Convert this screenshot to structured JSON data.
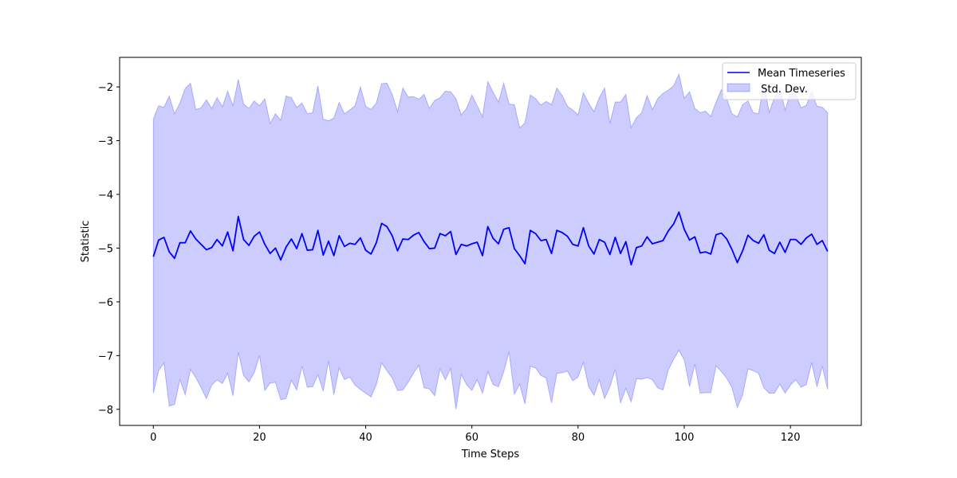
{
  "chart_data": {
    "type": "line",
    "title": "",
    "xlabel": "Time Steps",
    "ylabel": "Statistic",
    "xlim": [
      -6.35,
      133.35
    ],
    "ylim": [
      -8.3,
      -1.45
    ],
    "xticks": [
      0,
      20,
      40,
      60,
      80,
      100,
      120
    ],
    "yticks": [
      -8,
      -7,
      -6,
      -5,
      -4,
      -3,
      -2
    ],
    "grid": false,
    "legend_position": "top-right",
    "series": [
      {
        "name": "Mean Timeseries",
        "kind": "line",
        "color": "#0000ff",
        "x": [
          0,
          1,
          2,
          3,
          4,
          5,
          6,
          7,
          8,
          9,
          10,
          11,
          12,
          13,
          14,
          15,
          16,
          17,
          18,
          19,
          20,
          21,
          22,
          23,
          24,
          25,
          26,
          27,
          28,
          29,
          30,
          31,
          32,
          33,
          34,
          35,
          36,
          37,
          38,
          39,
          40,
          41,
          42,
          43,
          44,
          45,
          46,
          47,
          48,
          49,
          50,
          51,
          52,
          53,
          54,
          55,
          56,
          57,
          58,
          59,
          60,
          61,
          62,
          63,
          64,
          65,
          66,
          67,
          68,
          69,
          70,
          71,
          72,
          73,
          74,
          75,
          76,
          77,
          78,
          79,
          80,
          81,
          82,
          83,
          84,
          85,
          86,
          87,
          88,
          89,
          90,
          91,
          92,
          93,
          94,
          95,
          96,
          97,
          98,
          99,
          100,
          101,
          102,
          103,
          104,
          105,
          106,
          107,
          108,
          109,
          110,
          111,
          112,
          113,
          114,
          115,
          116,
          117,
          118,
          119,
          120,
          121,
          122,
          123,
          124,
          125,
          126,
          127
        ],
        "y": [
          -5.16,
          -4.85,
          -4.8,
          -5.07,
          -5.19,
          -4.9,
          -4.9,
          -4.68,
          -4.83,
          -4.93,
          -5.03,
          -4.99,
          -4.84,
          -4.96,
          -4.7,
          -5.05,
          -4.41,
          -4.84,
          -4.95,
          -4.78,
          -4.7,
          -4.93,
          -5.1,
          -5.0,
          -5.22,
          -4.98,
          -4.83,
          -5.01,
          -4.73,
          -5.04,
          -5.03,
          -4.67,
          -5.13,
          -4.87,
          -5.14,
          -4.77,
          -4.97,
          -4.91,
          -4.93,
          -4.81,
          -5.04,
          -5.11,
          -4.9,
          -4.54,
          -4.6,
          -4.77,
          -5.05,
          -4.83,
          -4.84,
          -4.76,
          -4.71,
          -4.88,
          -5.01,
          -5.0,
          -4.73,
          -4.77,
          -4.69,
          -5.12,
          -4.93,
          -4.96,
          -4.92,
          -4.89,
          -5.14,
          -4.6,
          -4.82,
          -4.92,
          -4.65,
          -4.62,
          -5.01,
          -5.14,
          -5.29,
          -4.67,
          -4.73,
          -4.86,
          -4.84,
          -5.1,
          -4.67,
          -4.71,
          -4.78,
          -4.93,
          -4.96,
          -4.62,
          -4.96,
          -5.11,
          -4.84,
          -4.89,
          -5.12,
          -4.8,
          -5.1,
          -4.88,
          -5.31,
          -4.99,
          -4.96,
          -4.79,
          -4.92,
          -4.89,
          -4.86,
          -4.68,
          -4.55,
          -4.33,
          -4.65,
          -4.85,
          -4.79,
          -5.09,
          -5.07,
          -5.11,
          -4.75,
          -4.72,
          -4.83,
          -5.03,
          -5.27,
          -5.05,
          -4.76,
          -4.86,
          -4.91,
          -4.75,
          -5.04,
          -5.1,
          -4.89,
          -5.08,
          -4.84,
          -4.84,
          -4.93,
          -4.81,
          -4.74,
          -4.93,
          -4.86,
          -5.06
        ]
      },
      {
        "name": " Std. Dev.",
        "kind": "band",
        "color": "#0000ff",
        "opacity": 0.2,
        "upper": [
          -2.6,
          -2.35,
          -2.38,
          -2.17,
          -2.5,
          -2.3,
          -2.03,
          -1.93,
          -2.42,
          -2.39,
          -2.24,
          -2.4,
          -2.2,
          -2.37,
          -2.08,
          -2.35,
          -1.86,
          -2.32,
          -2.4,
          -2.26,
          -2.35,
          -2.22,
          -2.68,
          -2.5,
          -2.62,
          -2.17,
          -2.2,
          -2.38,
          -2.3,
          -2.5,
          -2.48,
          -1.98,
          -2.6,
          -2.63,
          -2.58,
          -2.29,
          -2.5,
          -2.43,
          -2.35,
          -2.0,
          -2.36,
          -2.42,
          -2.3,
          -1.94,
          -1.93,
          -2.14,
          -2.46,
          -2.02,
          -2.19,
          -2.18,
          -2.23,
          -2.14,
          -2.4,
          -2.25,
          -2.2,
          -2.08,
          -2.09,
          -2.22,
          -2.52,
          -2.4,
          -2.15,
          -2.35,
          -2.56,
          -1.9,
          -2.1,
          -2.28,
          -1.93,
          -2.32,
          -2.33,
          -2.76,
          -2.67,
          -2.15,
          -2.22,
          -2.34,
          -2.27,
          -2.33,
          -2.02,
          -2.16,
          -2.36,
          -2.43,
          -2.52,
          -2.11,
          -2.3,
          -2.46,
          -2.2,
          -2.02,
          -2.68,
          -2.28,
          -2.28,
          -2.14,
          -2.76,
          -2.57,
          -2.48,
          -2.16,
          -2.42,
          -2.22,
          -2.12,
          -2.06,
          -1.98,
          -1.76,
          -2.21,
          -2.09,
          -2.4,
          -2.48,
          -2.45,
          -2.55,
          -2.28,
          -2.05,
          -2.22,
          -2.5,
          -2.56,
          -2.33,
          -2.26,
          -2.48,
          -2.5,
          -1.95,
          -2.47,
          -2.2,
          -2.01,
          -2.43,
          -2.12,
          -2.14,
          -2.39,
          -2.34,
          -2.08,
          -2.36,
          -2.38,
          -2.48
        ],
        "lower": [
          -7.7,
          -7.28,
          -7.14,
          -7.94,
          -7.91,
          -7.45,
          -7.73,
          -7.26,
          -7.41,
          -7.6,
          -7.8,
          -7.55,
          -7.45,
          -7.52,
          -7.33,
          -7.75,
          -6.94,
          -7.37,
          -7.49,
          -7.32,
          -7.0,
          -7.65,
          -7.51,
          -7.5,
          -7.82,
          -7.8,
          -7.46,
          -7.64,
          -7.2,
          -7.59,
          -7.58,
          -7.36,
          -7.66,
          -7.1,
          -7.73,
          -7.23,
          -7.45,
          -7.4,
          -7.55,
          -7.63,
          -7.7,
          -7.77,
          -7.54,
          -7.14,
          -7.28,
          -7.42,
          -7.65,
          -7.64,
          -7.5,
          -7.33,
          -7.18,
          -7.6,
          -7.62,
          -7.75,
          -7.25,
          -7.45,
          -7.24,
          -8.0,
          -7.35,
          -7.54,
          -7.65,
          -7.45,
          -7.7,
          -7.3,
          -7.54,
          -7.58,
          -7.3,
          -6.93,
          -7.72,
          -7.53,
          -7.9,
          -7.2,
          -7.23,
          -7.37,
          -7.42,
          -7.88,
          -7.33,
          -7.32,
          -7.29,
          -7.47,
          -7.4,
          -7.13,
          -7.58,
          -7.74,
          -7.45,
          -7.8,
          -7.58,
          -7.26,
          -7.88,
          -7.61,
          -7.86,
          -7.43,
          -7.44,
          -7.41,
          -7.45,
          -7.6,
          -7.64,
          -7.27,
          -7.07,
          -6.9,
          -7.08,
          -7.58,
          -7.16,
          -7.7,
          -7.69,
          -7.69,
          -7.19,
          -7.3,
          -7.42,
          -7.6,
          -7.97,
          -7.73,
          -7.25,
          -7.28,
          -7.33,
          -7.6,
          -7.7,
          -7.7,
          -7.53,
          -7.7,
          -7.55,
          -7.45,
          -7.59,
          -7.54,
          -7.13,
          -7.58,
          -7.2,
          -7.63
        ]
      }
    ]
  }
}
